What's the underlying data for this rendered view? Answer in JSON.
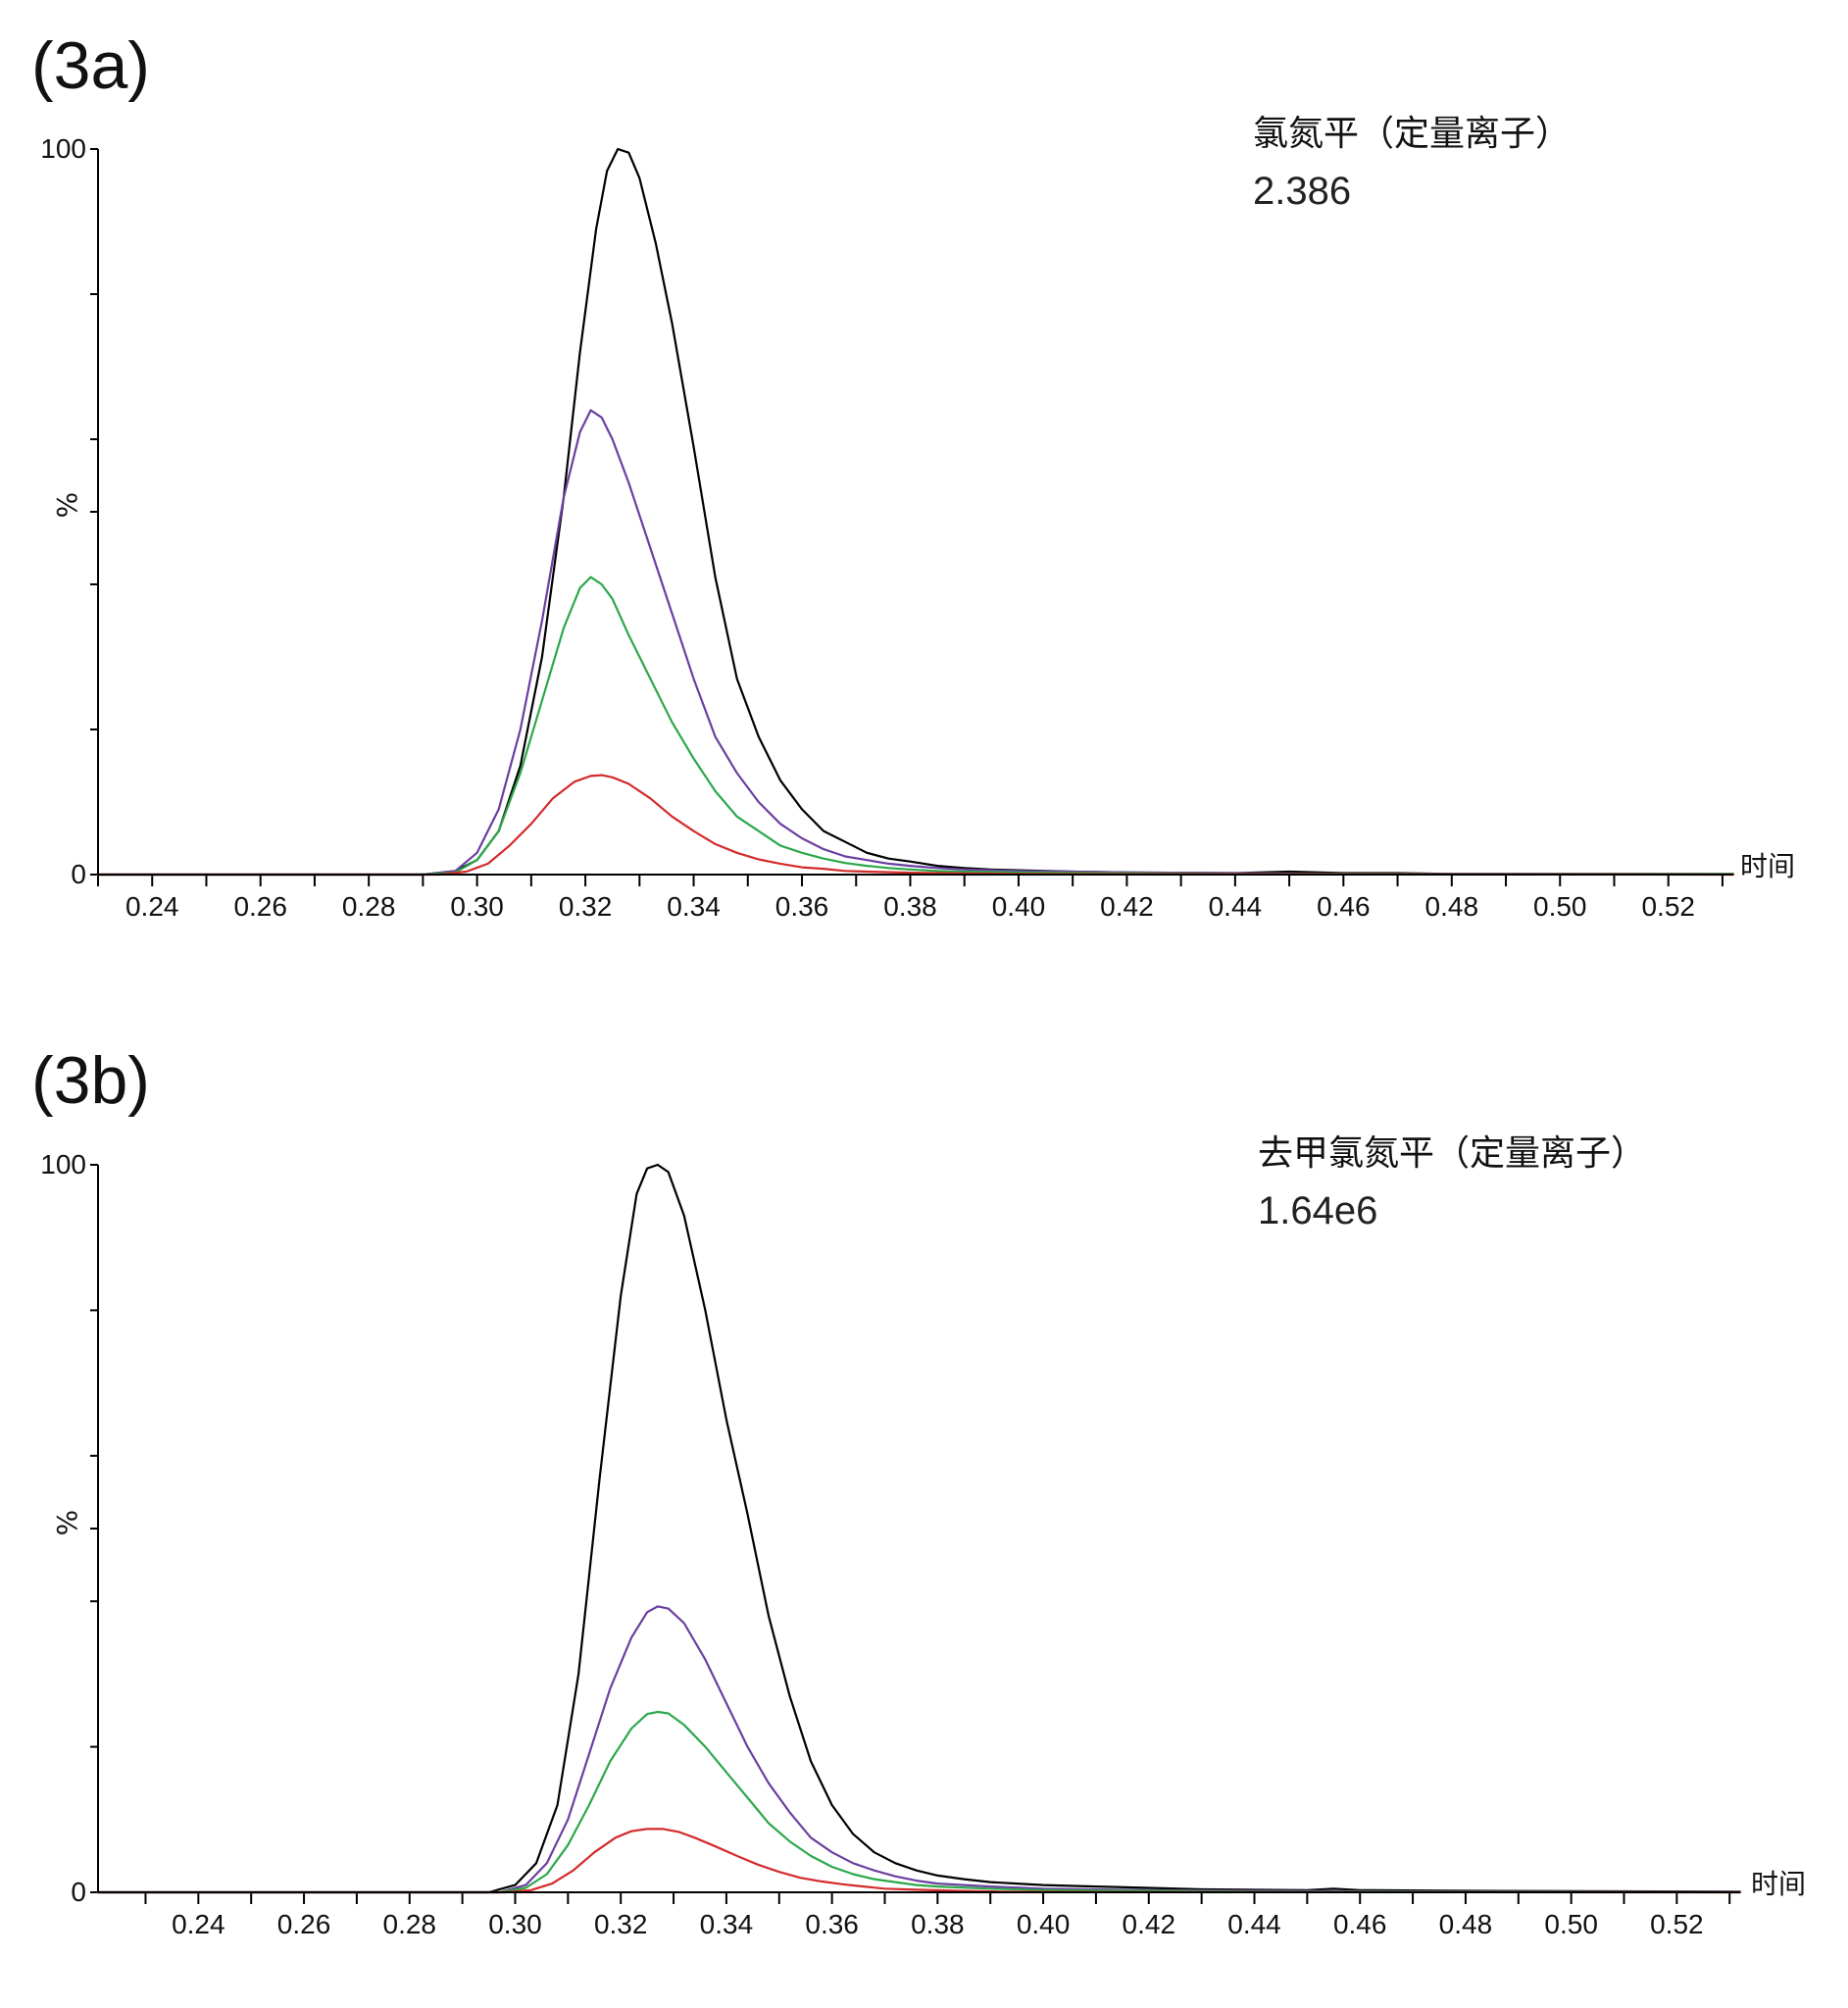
{
  "chart_data": [
    {
      "type": "line",
      "panel_label": "(3a)",
      "annotation_name": "氯氮平（定量离子）",
      "annotation_value": "2.386",
      "xlabel": "时间",
      "ylabel": "%",
      "xlim": [
        0.23,
        0.532
      ],
      "ylim": [
        0,
        100
      ],
      "x_ticks": [
        "0.24",
        "0.26",
        "0.28",
        "0.30",
        "0.32",
        "0.34",
        "0.36",
        "0.38",
        "0.40",
        "0.42",
        "0.44",
        "0.46",
        "0.48",
        "0.50",
        "0.52"
      ],
      "y_tick_labels": [
        "0",
        "100"
      ],
      "y_tick_values": [
        0,
        100
      ],
      "y_minor_ticks": [
        0,
        20,
        40,
        50,
        60,
        80,
        100
      ],
      "series": [
        {
          "color": "#000000",
          "x": [
            0.23,
            0.29,
            0.296,
            0.3,
            0.304,
            0.308,
            0.312,
            0.316,
            0.319,
            0.322,
            0.324,
            0.326,
            0.328,
            0.33,
            0.333,
            0.336,
            0.34,
            0.344,
            0.348,
            0.352,
            0.356,
            0.36,
            0.364,
            0.368,
            0.372,
            0.376,
            0.38,
            0.385,
            0.39,
            0.395,
            0.4,
            0.41,
            0.42,
            0.44,
            0.45,
            0.46,
            0.47,
            0.48,
            0.532
          ],
          "y": [
            0,
            0,
            0.5,
            2,
            6,
            15,
            30,
            52,
            72,
            89,
            97,
            100,
            99.5,
            96,
            87,
            76,
            59,
            41,
            27,
            19,
            13,
            9,
            6,
            4.5,
            3,
            2.2,
            1.8,
            1.2,
            0.9,
            0.7,
            0.6,
            0.4,
            0.3,
            0.2,
            0.4,
            0.2,
            0.2,
            0.1,
            0.1
          ]
        },
        {
          "color": "#6b3fa0",
          "x": [
            0.23,
            0.29,
            0.296,
            0.3,
            0.304,
            0.308,
            0.312,
            0.316,
            0.319,
            0.321,
            0.323,
            0.325,
            0.328,
            0.332,
            0.336,
            0.34,
            0.344,
            0.348,
            0.352,
            0.356,
            0.36,
            0.364,
            0.368,
            0.372,
            0.376,
            0.38,
            0.385,
            0.39,
            0.4,
            0.42,
            0.44,
            0.46,
            0.48,
            0.532
          ],
          "y": [
            0,
            0,
            0.5,
            3,
            9,
            20,
            35,
            52,
            61,
            64,
            63,
            60,
            54,
            45,
            36,
            27,
            19,
            14,
            10,
            7,
            5,
            3.5,
            2.5,
            2,
            1.5,
            1.2,
            0.9,
            0.7,
            0.5,
            0.3,
            0.2,
            0.1,
            0.1,
            0.05
          ]
        },
        {
          "color": "#2ca84a",
          "x": [
            0.23,
            0.29,
            0.296,
            0.3,
            0.304,
            0.308,
            0.312,
            0.316,
            0.319,
            0.321,
            0.323,
            0.325,
            0.328,
            0.332,
            0.336,
            0.34,
            0.344,
            0.348,
            0.352,
            0.356,
            0.36,
            0.364,
            0.368,
            0.372,
            0.376,
            0.38,
            0.385,
            0.39,
            0.4,
            0.42,
            0.44,
            0.46,
            0.48,
            0.532
          ],
          "y": [
            0,
            0,
            0.3,
            2,
            6,
            14,
            24,
            34,
            39.5,
            41,
            40,
            38,
            33,
            27,
            21,
            16,
            11.5,
            8,
            6,
            4,
            3,
            2.2,
            1.6,
            1.2,
            0.9,
            0.7,
            0.5,
            0.4,
            0.3,
            0.2,
            0.1,
            0.1,
            0.05,
            0.05
          ]
        },
        {
          "color": "#d42a2a",
          "x": [
            0.23,
            0.293,
            0.298,
            0.302,
            0.306,
            0.31,
            0.314,
            0.318,
            0.321,
            0.323,
            0.325,
            0.328,
            0.332,
            0.336,
            0.34,
            0.344,
            0.348,
            0.352,
            0.356,
            0.36,
            0.364,
            0.368,
            0.372,
            0.38,
            0.39,
            0.4,
            0.44,
            0.532
          ],
          "y": [
            0,
            0,
            0.4,
            1.5,
            4,
            7,
            10.5,
            12.8,
            13.6,
            13.7,
            13.4,
            12.5,
            10.5,
            8,
            6,
            4.2,
            3,
            2.1,
            1.5,
            1,
            0.8,
            0.5,
            0.4,
            0.25,
            0.15,
            0.1,
            0.05,
            0
          ]
        }
      ]
    },
    {
      "type": "line",
      "panel_label": "(3b)",
      "annotation_name": "去甲氯氮平（定量离子）",
      "annotation_value": "1.64e6",
      "xlabel": "时间",
      "ylabel": "%",
      "xlim": [
        0.221,
        0.532
      ],
      "ylim": [
        0,
        100
      ],
      "x_ticks": [
        "0.24",
        "0.26",
        "0.28",
        "0.30",
        "0.32",
        "0.34",
        "0.36",
        "0.38",
        "0.40",
        "0.42",
        "0.44",
        "0.46",
        "0.48",
        "0.50",
        "0.52"
      ],
      "y_tick_labels": [
        "0",
        "100"
      ],
      "y_tick_values": [
        0,
        100
      ],
      "y_minor_ticks": [
        0,
        20,
        40,
        50,
        60,
        80,
        100
      ],
      "series": [
        {
          "color": "#000000",
          "x": [
            0.221,
            0.295,
            0.3,
            0.304,
            0.308,
            0.312,
            0.316,
            0.32,
            0.323,
            0.325,
            0.327,
            0.329,
            0.332,
            0.336,
            0.34,
            0.344,
            0.348,
            0.352,
            0.356,
            0.36,
            0.364,
            0.368,
            0.372,
            0.376,
            0.38,
            0.385,
            0.39,
            0.395,
            0.4,
            0.41,
            0.42,
            0.43,
            0.45,
            0.455,
            0.46,
            0.48,
            0.532
          ],
          "y": [
            0,
            0,
            1,
            4,
            12,
            30,
            57,
            82,
            96,
            99.5,
            100,
            99,
            93,
            80,
            65,
            52,
            38,
            27,
            18,
            12,
            8,
            5.5,
            4,
            3,
            2.3,
            1.8,
            1.4,
            1.2,
            1,
            0.8,
            0.6,
            0.4,
            0.3,
            0.5,
            0.3,
            0.2,
            0.1
          ]
        },
        {
          "color": "#6b3fa0",
          "x": [
            0.221,
            0.297,
            0.302,
            0.306,
            0.31,
            0.314,
            0.318,
            0.322,
            0.325,
            0.327,
            0.329,
            0.332,
            0.336,
            0.34,
            0.344,
            0.348,
            0.352,
            0.356,
            0.36,
            0.364,
            0.368,
            0.372,
            0.376,
            0.38,
            0.39,
            0.4,
            0.42,
            0.44,
            0.48,
            0.532
          ],
          "y": [
            0,
            0,
            1,
            4,
            10,
            19,
            28,
            35,
            38.5,
            39.3,
            39,
            37,
            32,
            26,
            20,
            15,
            11,
            7.5,
            5.5,
            4,
            3,
            2.2,
            1.6,
            1.2,
            0.8,
            0.5,
            0.3,
            0.2,
            0.1,
            0.05
          ]
        },
        {
          "color": "#2ca84a",
          "x": [
            0.221,
            0.297,
            0.302,
            0.306,
            0.31,
            0.314,
            0.318,
            0.322,
            0.325,
            0.327,
            0.329,
            0.332,
            0.336,
            0.34,
            0.344,
            0.348,
            0.352,
            0.356,
            0.36,
            0.364,
            0.368,
            0.372,
            0.376,
            0.38,
            0.39,
            0.4,
            0.42,
            0.44,
            0.48,
            0.532
          ],
          "y": [
            0,
            0,
            0.6,
            2.5,
            6.5,
            12,
            18,
            22.5,
            24.5,
            24.8,
            24.6,
            23,
            20,
            16.5,
            13,
            9.5,
            7,
            5,
            3.5,
            2.5,
            1.8,
            1.4,
            1,
            0.8,
            0.5,
            0.3,
            0.2,
            0.1,
            0.05,
            0
          ]
        },
        {
          "color": "#d42a2a",
          "x": [
            0.221,
            0.298,
            0.303,
            0.307,
            0.311,
            0.315,
            0.319,
            0.322,
            0.325,
            0.328,
            0.331,
            0.334,
            0.338,
            0.342,
            0.346,
            0.35,
            0.354,
            0.358,
            0.362,
            0.366,
            0.37,
            0.376,
            0.384,
            0.392,
            0.4,
            0.44,
            0.532
          ],
          "y": [
            0,
            0,
            0.3,
            1.2,
            3,
            5.5,
            7.5,
            8.4,
            8.7,
            8.7,
            8.3,
            7.5,
            6.3,
            5,
            3.8,
            2.8,
            2,
            1.5,
            1.1,
            0.8,
            0.5,
            0.35,
            0.2,
            0.1,
            0.05,
            0.02,
            0
          ]
        }
      ]
    }
  ]
}
